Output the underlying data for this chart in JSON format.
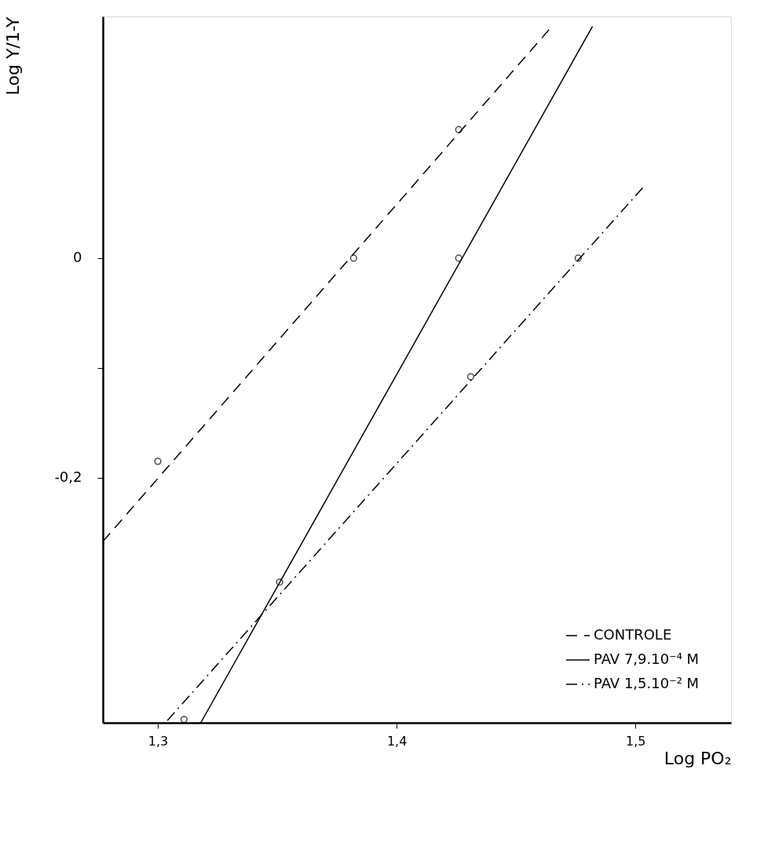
{
  "chart_data": {
    "type": "line",
    "xlabel": "Log PO₂",
    "ylabel": "Log Y/1-Y",
    "xlim": [
      1.277,
      1.54
    ],
    "ylim": [
      -0.423,
      0.22
    ],
    "xticks": [
      {
        "value": 1.3,
        "label": "1,3"
      },
      {
        "value": 1.4,
        "label": "1,4"
      },
      {
        "value": 1.5,
        "label": "1,5"
      }
    ],
    "yticks": [
      {
        "value": -0.2,
        "label": "-0,2"
      },
      {
        "value": -0.1,
        "label": null
      },
      {
        "value": 0,
        "label": "0"
      }
    ],
    "grid": false,
    "legend": "bottom right",
    "series": [
      {
        "name": "CONTROLE",
        "color": "#000000",
        "line_style": "dashed",
        "marker": "none",
        "x": [
          1.277,
          1.465
        ],
        "values": [
          -0.258,
          0.211
        ]
      },
      {
        "name": "PAV 7,9.10⁻⁴ M",
        "color": "#000000",
        "line_style": "solid",
        "marker": "none",
        "x": [
          1.318,
          1.482
        ],
        "values": [
          -0.423,
          0.211
        ]
      },
      {
        "name": "PAV 1,5.10⁻² M",
        "color": "#000000",
        "line_style": "dashdot",
        "marker": "none",
        "x": [
          1.304,
          1.503
        ],
        "values": [
          -0.421,
          0.064
        ]
      },
      {
        "type": "scatter",
        "color": "#000000",
        "marker": "circle",
        "x": [
          1.3,
          1.382,
          1.426
        ],
        "values": [
          -0.185,
          0,
          0.117
        ]
      },
      {
        "type": "scatter",
        "color": "#000000",
        "marker": "circle",
        "x": [
          1.351,
          1.426
        ],
        "values": [
          -0.295,
          0
        ]
      },
      {
        "type": "scatter",
        "color": "#000000",
        "marker": "circle",
        "x": [
          1.311,
          1.431,
          1.476
        ],
        "values": [
          -0.42,
          -0.108,
          0
        ]
      }
    ]
  }
}
